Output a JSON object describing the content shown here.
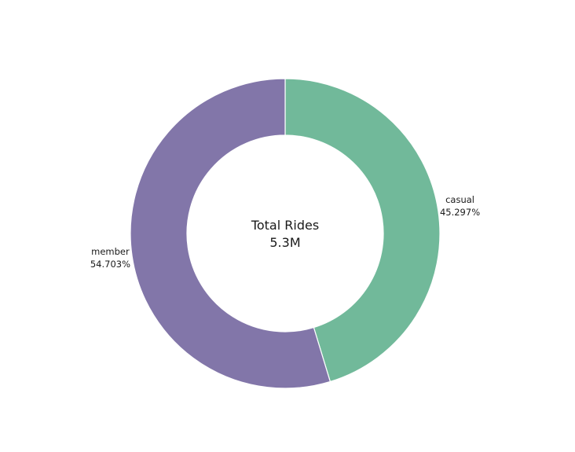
{
  "chart_data": {
    "type": "pie",
    "donut": true,
    "center": {
      "title": "Total Rides",
      "value": "5.3M"
    },
    "slices": [
      {
        "label": "casual",
        "value": 45.297,
        "value_label": "45.297%",
        "color": "#71b99a"
      },
      {
        "label": "member",
        "value": 54.703,
        "value_label": "54.703%",
        "color": "#8276a9"
      }
    ],
    "start_angle_deg": 0,
    "direction": "clockwise",
    "legend": "none"
  }
}
